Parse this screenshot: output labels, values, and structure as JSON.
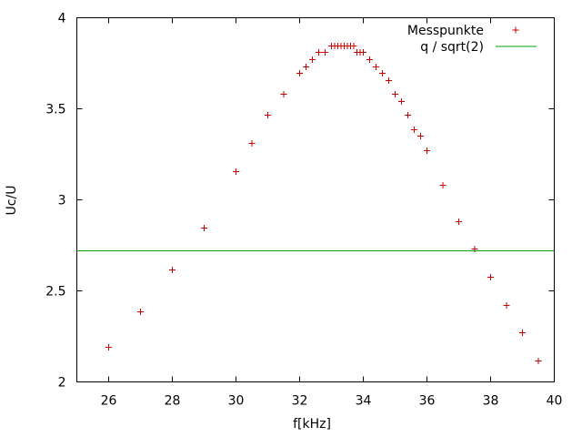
{
  "chart_data": {
    "type": "scatter",
    "title": "",
    "xlabel": "f[kHz]",
    "ylabel": "Uc/U",
    "xlim": [
      25,
      40
    ],
    "ylim": [
      2,
      4
    ],
    "xticks": [
      "26",
      "28",
      "30",
      "32",
      "34",
      "36",
      "38",
      "40"
    ],
    "yticks": [
      "2",
      "2.5",
      "3",
      "3.5",
      "4"
    ],
    "grid": false,
    "legend_position": "top-right",
    "series": [
      {
        "name": "Messpunkte",
        "kind": "points",
        "marker": "plus",
        "color": "#cc0000",
        "x": [
          26,
          27,
          28,
          29,
          30,
          30.5,
          31,
          31.5,
          32,
          32.2,
          32.4,
          32.6,
          32.8,
          33.0,
          33.1,
          33.2,
          33.3,
          33.4,
          33.5,
          33.6,
          33.7,
          33.8,
          33.9,
          34.0,
          34.2,
          34.4,
          34.6,
          34.8,
          35.0,
          35.2,
          35.4,
          35.6,
          35.8,
          36.0,
          36.5,
          37.0,
          37.5,
          38.0,
          38.5,
          39.0,
          39.5
        ],
        "y": [
          2.19,
          2.385,
          2.615,
          2.845,
          3.155,
          3.31,
          3.465,
          3.58,
          3.695,
          3.73,
          3.77,
          3.81,
          3.81,
          3.845,
          3.845,
          3.845,
          3.845,
          3.845,
          3.845,
          3.845,
          3.845,
          3.81,
          3.81,
          3.81,
          3.77,
          3.73,
          3.695,
          3.655,
          3.58,
          3.54,
          3.465,
          3.385,
          3.35,
          3.27,
          3.08,
          2.88,
          2.73,
          2.575,
          2.42,
          2.27,
          2.115
        ]
      },
      {
        "name": "q / sqrt(2)",
        "kind": "hline",
        "color": "#00a000",
        "y": 2.72
      }
    ]
  }
}
